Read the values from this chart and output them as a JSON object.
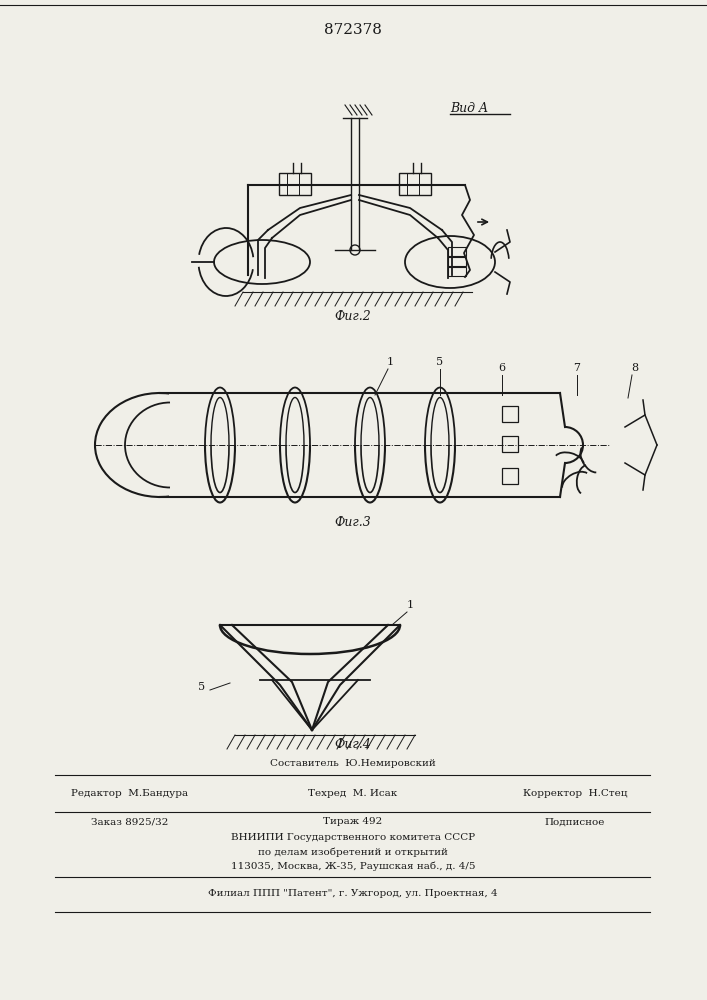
{
  "title": "872378",
  "fig1_caption": "Фиг.2",
  "fig2_caption": "Фиг.3",
  "fig3_caption": "Фиг.4",
  "vid_a_label": "Вид A",
  "bottom_line1": "Составитель  Ю.Немировский",
  "bottom_editor": "Редактор  М.Бандура",
  "bottom_tehred": "Техред  М. Исак",
  "bottom_corrector": "Корректор  Н.Стец",
  "bottom_zakaz": "Заказ 8925/32",
  "bottom_tirazh": "Тираж 492",
  "bottom_podp": "Подписное",
  "bottom_vniip1": "ВНИИПИ Государственного комитета СССР",
  "bottom_vniip2": "по делам изобретений и открытий",
  "bottom_addr": "113035, Москва, Ж-35, Раушская наб., д. 4/5",
  "bottom_filial": "Филиал ППП \"Патент\", г. Ужгород, ул. Проектная, 4",
  "bg_color": "#f0efe8",
  "lc": "#1a1a1a"
}
